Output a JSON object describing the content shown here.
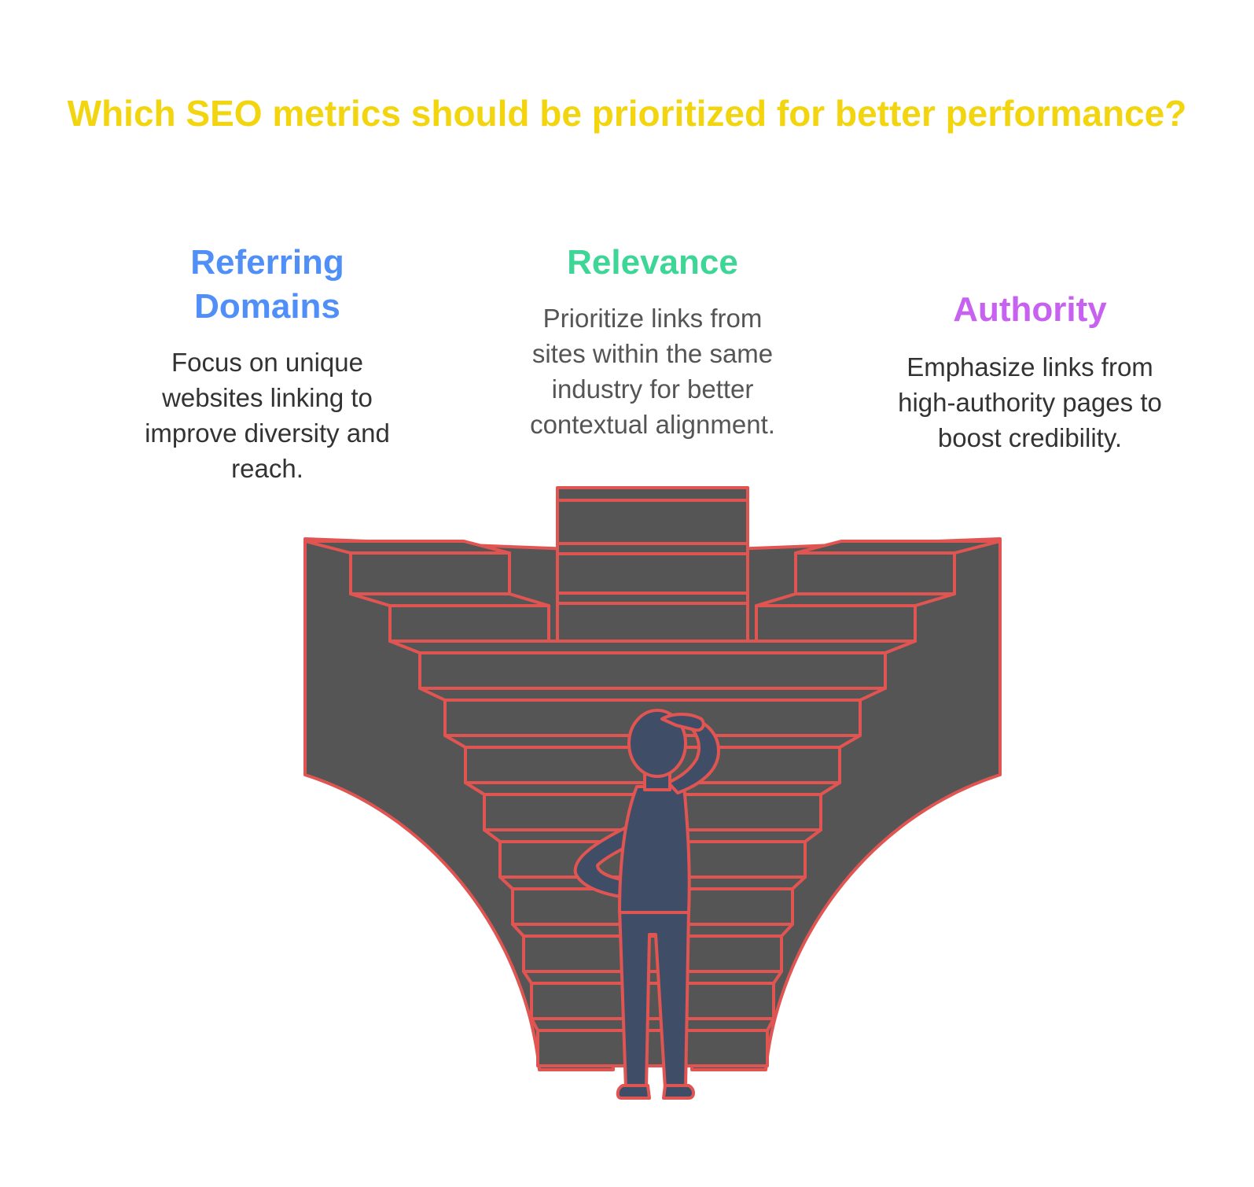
{
  "title": "Which SEO metrics should be prioritized for better performance?",
  "items": [
    {
      "heading_lines": [
        "Referring",
        "Domains"
      ],
      "desc_lines": [
        "Focus on unique",
        "websites linking to",
        "improve diversity and",
        "reach."
      ],
      "color": "#4f8ff7"
    },
    {
      "heading_lines": [
        "Relevance"
      ],
      "desc_lines": [
        "Prioritize links from",
        "sites within the same",
        "industry for better",
        "contextual alignment."
      ],
      "color": "#3ed696"
    },
    {
      "heading_lines": [
        "Authority"
      ],
      "desc_lines": [
        "Emphasize links from",
        "high-authority pages to",
        "boost credibility."
      ],
      "color": "#c762f0"
    }
  ],
  "colors": {
    "title": "#f2d50f",
    "stairs_fill": "#555555",
    "stairs_stroke": "#e05552",
    "person_fill": "#3f4d66"
  },
  "illustration": {
    "icon": "thinking-person-at-branching-staircase-icon"
  }
}
